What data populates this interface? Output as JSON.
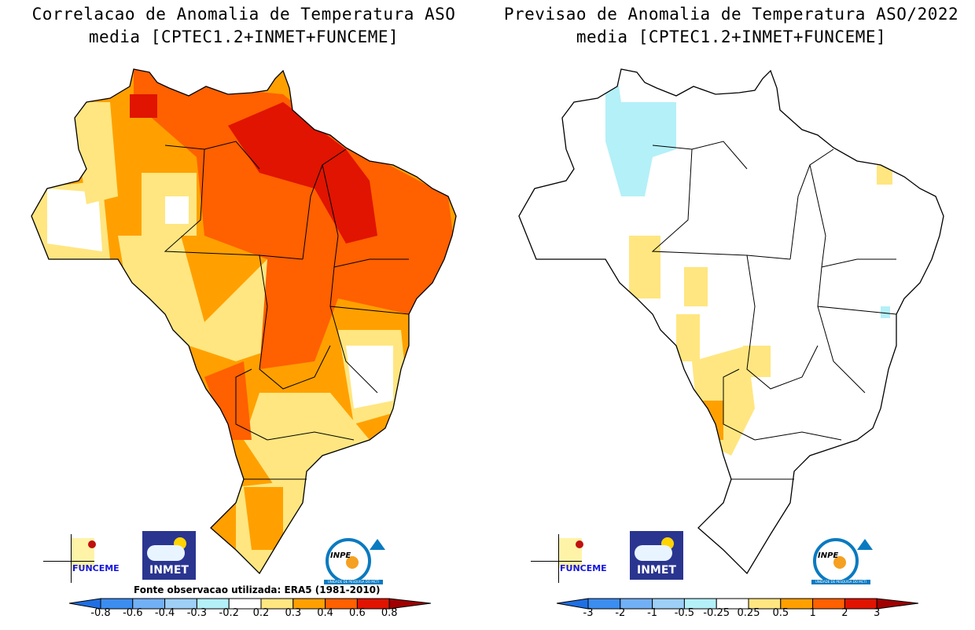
{
  "left": {
    "title_line1": "Correlacao de Anomalia de Temperatura ASO",
    "title_line2": "media [CPTEC1.2+INMET+FUNCEME]",
    "source": "Fonte observacao utilizada: ERA5 (1981-2010)",
    "colorbar_labels": [
      "-0.8",
      "-0.6",
      "-0.4",
      "-0.3",
      "-0.2",
      "0.2",
      "0.3",
      "0.4",
      "0.6",
      "0.8"
    ]
  },
  "right": {
    "title_line1": "Previsao de Anomalia de Temperatura ASO/2022",
    "title_line2": "media [CPTEC1.2+INMET+FUNCEME]",
    "colorbar_labels": [
      "-3",
      "-2",
      "-1",
      "-0.5",
      "-0.25",
      "0.25",
      "0.5",
      "1",
      "2",
      "3"
    ]
  },
  "colorbar_colors": [
    "#1f6fe3",
    "#3c8df0",
    "#72b0f5",
    "#9dcff7",
    "#b4f0f8",
    "#ffffff",
    "#ffe680",
    "#ffa000",
    "#ff6000",
    "#e01400",
    "#a00000"
  ],
  "logos": {
    "funceme": "FUNCEME",
    "inmet": "INMET",
    "inpe": "INPE",
    "inpe_sub": "UNIDADE DE PESQUISA DO MCTI"
  }
}
